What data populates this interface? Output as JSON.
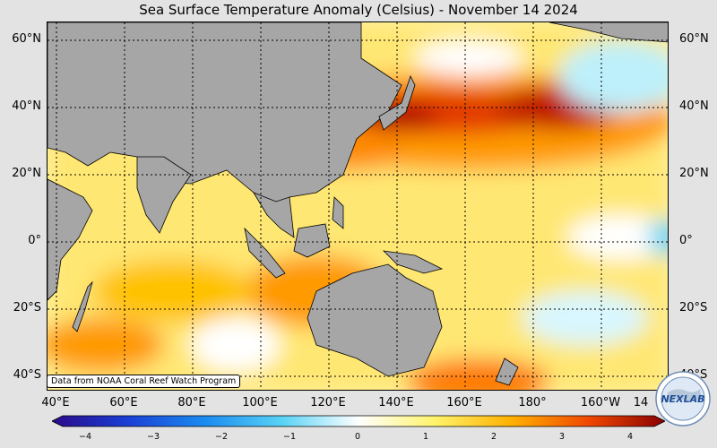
{
  "title": "Sea Surface Temperature Anomaly (Celsius) - November 14 2024",
  "credit": "Data from NOAA Coral Reef Watch Program",
  "lat_labels": [
    "60°N",
    "40°N",
    "20°N",
    "0°",
    "20°S",
    "40°S"
  ],
  "lon_labels": [
    "40°E",
    "60°E",
    "80°E",
    "100°E",
    "120°E",
    "140°E",
    "160°E",
    "180°",
    "160°W",
    "14"
  ],
  "colorbar": {
    "ticks": [
      "−4",
      "−3",
      "−2",
      "−1",
      "0",
      "1",
      "2",
      "3",
      "4"
    ],
    "range": [
      -4,
      4
    ],
    "colors": [
      "#2b0a8a",
      "#1b3fd6",
      "#1b8cf0",
      "#59d2f5",
      "#ffffff",
      "#fff36b",
      "#ffb000",
      "#f04800",
      "#8a0000"
    ]
  },
  "logo": {
    "text": "NEXLAB"
  },
  "colors": {
    "land": "#a6a6a6",
    "sea": "#fff3a8",
    "grid": "#000000"
  }
}
